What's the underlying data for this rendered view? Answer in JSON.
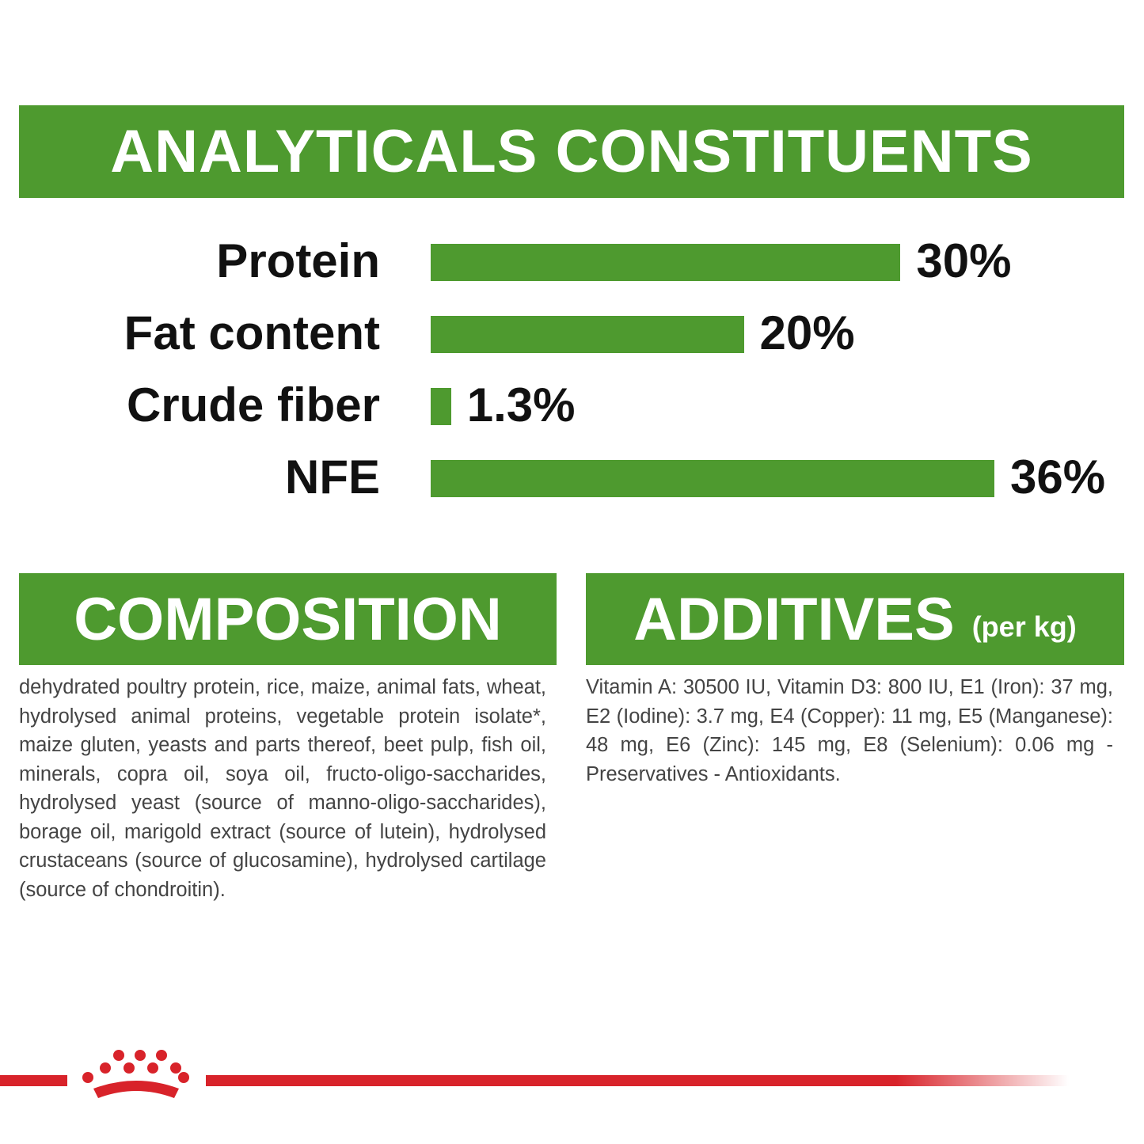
{
  "chart_data": {
    "type": "bar",
    "orientation": "horizontal",
    "title": "ANALYTICALS CONSTITUENTS",
    "categories": [
      "Protein",
      "Fat content",
      "Crude fiber",
      "NFE"
    ],
    "values": [
      30,
      20,
      1.3,
      36
    ],
    "value_labels": [
      "30%",
      "20%",
      "1.3%",
      "36%"
    ],
    "color": "#4e9a2f"
  },
  "composition": {
    "title": "COMPOSITION",
    "text": "dehydrated poultry protein, rice, maize, animal fats, wheat, hydrolysed animal proteins, vegetable protein isolate*, maize gluten, yeasts and parts thereof, beet pulp, fish oil, minerals, copra oil, soya oil, fructo-oligo-saccharides, hydrolysed yeast (source of manno-oligo-saccharides), borage oil, marigold extract (source of lutein), hydrolysed crustaceans (source of glucosamine), hydrolysed cartilage (source of chondroitin)."
  },
  "additives": {
    "title": "ADDITIVES",
    "unit": "(per kg)",
    "text": "Vitamin A: 30500 IU, Vitamin D3: 800 IU, E1 (Iron): 37 mg, E2 (Iodine): 3.7 mg, E4 (Copper): 11 mg, E5 (Manganese): 48 mg, E6 (Zinc): 145 mg, E8 (Selenium): 0.06 mg - Preservatives - Antioxidants."
  }
}
